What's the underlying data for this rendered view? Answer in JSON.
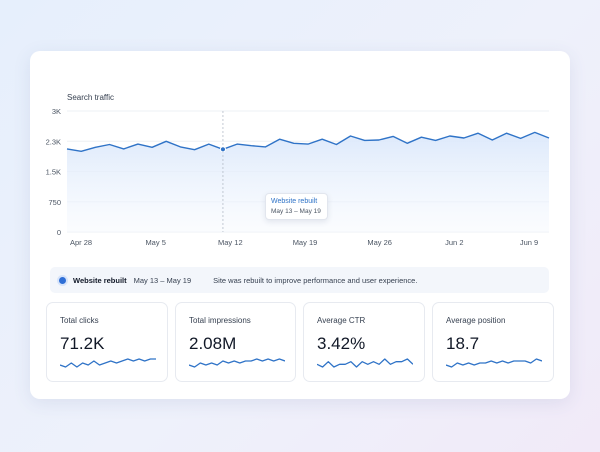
{
  "chart": {
    "title": "Search traffic",
    "y_ticks": [
      "3K",
      "2.3K",
      "1.5K",
      "750",
      "0"
    ],
    "x_ticks": [
      "Apr 28",
      "May 5",
      "May 12",
      "May 19",
      "May 26",
      "Jun 2",
      "Jun 9"
    ]
  },
  "chart_data": {
    "type": "area",
    "title": "Search traffic",
    "xlabel": "",
    "ylabel": "",
    "ylim": [
      0,
      3000
    ],
    "yticks": [
      "3K",
      "2.3K",
      "1.5K",
      "750",
      "0"
    ],
    "xticks": [
      "Apr 28",
      "May 5",
      "May 12",
      "May 19",
      "May 26",
      "Jun 2",
      "Jun 9"
    ],
    "grid": true,
    "series": [
      {
        "values": [
          2060,
          2000,
          2100,
          2170,
          2060,
          2180,
          2100,
          2250,
          2110,
          2040,
          2180,
          2050,
          2180,
          2140,
          2110,
          2300,
          2200,
          2180,
          2300,
          2170,
          2380,
          2270,
          2280,
          2370,
          2200,
          2350,
          2270,
          2380,
          2330,
          2450,
          2280,
          2450,
          2320,
          2470,
          2330
        ]
      }
    ],
    "annotation": {
      "label": "Website rebuilt",
      "range": "May 13 – May 19"
    },
    "accent_color": "#2f73c7"
  },
  "annotation": {
    "title": "Website rebuilt",
    "range": "May 13 – May 19",
    "description": "Site was rebuilt to improve performance and user experience."
  },
  "stats": [
    {
      "label": "Total clicks",
      "value": "71.2K",
      "trend": [
        4,
        3,
        5,
        3,
        5,
        4,
        6,
        4,
        5,
        6,
        5,
        6,
        7,
        6,
        7,
        6,
        7,
        7
      ]
    },
    {
      "label": "Total impressions",
      "value": "2.08M",
      "trend": [
        4,
        3,
        5,
        4,
        5,
        4,
        6,
        5,
        6,
        5,
        6,
        6,
        7,
        6,
        7,
        6,
        7,
        6
      ]
    },
    {
      "label": "Average CTR",
      "value": "3.42%",
      "trend": [
        5,
        4,
        6,
        4,
        5,
        5,
        6,
        4,
        6,
        5,
        6,
        5,
        7,
        5,
        6,
        6,
        7,
        5
      ]
    },
    {
      "label": "Average position",
      "value": "18.7",
      "trend": [
        4,
        3,
        5,
        4,
        5,
        4,
        5,
        5,
        6,
        5,
        6,
        5,
        6,
        6,
        6,
        5,
        7,
        6
      ]
    }
  ]
}
